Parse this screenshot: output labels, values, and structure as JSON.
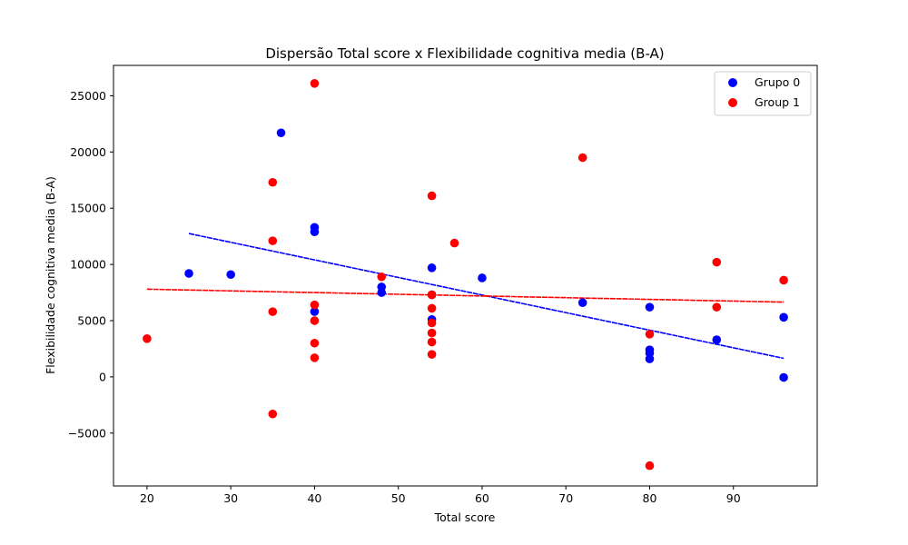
{
  "chart_data": {
    "type": "scatter",
    "title": "Dispersão Total score x Flexibilidade cognitiva media (B-A)",
    "xlabel": "Total score",
    "ylabel": "Flexibilidade cognitiva media (B-A)",
    "xlim": [
      16,
      100
    ],
    "ylim": [
      -9700,
      27700
    ],
    "xticks": [
      20,
      30,
      40,
      50,
      60,
      70,
      80,
      90
    ],
    "yticks": [
      -5000,
      0,
      5000,
      10000,
      15000,
      20000,
      25000
    ],
    "grid": false,
    "legend_position": "top-right",
    "series": [
      {
        "name": "Grupo 0",
        "color": "#0000ff",
        "points": [
          [
            25,
            9200
          ],
          [
            30,
            9100
          ],
          [
            36,
            21700
          ],
          [
            40,
            13300
          ],
          [
            40,
            12900
          ],
          [
            40,
            5800
          ],
          [
            48,
            8000
          ],
          [
            48,
            7500
          ],
          [
            54,
            9700
          ],
          [
            54,
            7300
          ],
          [
            54,
            5100
          ],
          [
            60,
            8800
          ],
          [
            72,
            6600
          ],
          [
            80,
            6200
          ],
          [
            80,
            2400
          ],
          [
            80,
            2100
          ],
          [
            80,
            1600
          ],
          [
            88,
            3300
          ],
          [
            96,
            5300
          ],
          [
            96,
            -50
          ]
        ],
        "trend": [
          [
            25,
            12750
          ],
          [
            96,
            1650
          ]
        ]
      },
      {
        "name": "Group 1",
        "color": "#ff0000",
        "points": [
          [
            20,
            3400
          ],
          [
            35,
            17300
          ],
          [
            35,
            12100
          ],
          [
            35,
            5800
          ],
          [
            35,
            -3300
          ],
          [
            40,
            26100
          ],
          [
            40,
            6400
          ],
          [
            40,
            5000
          ],
          [
            40,
            3000
          ],
          [
            40,
            1700
          ],
          [
            48,
            8900
          ],
          [
            54,
            16100
          ],
          [
            54,
            7300
          ],
          [
            54,
            6100
          ],
          [
            54,
            4800
          ],
          [
            54,
            3900
          ],
          [
            54,
            3100
          ],
          [
            54,
            2000
          ],
          [
            56.7,
            11900
          ],
          [
            72,
            19500
          ],
          [
            80,
            3800
          ],
          [
            80,
            -7900
          ],
          [
            88,
            10200
          ],
          [
            88,
            6200
          ],
          [
            96,
            8600
          ]
        ],
        "trend": [
          [
            20,
            7800
          ],
          [
            96,
            6650
          ]
        ]
      }
    ]
  }
}
